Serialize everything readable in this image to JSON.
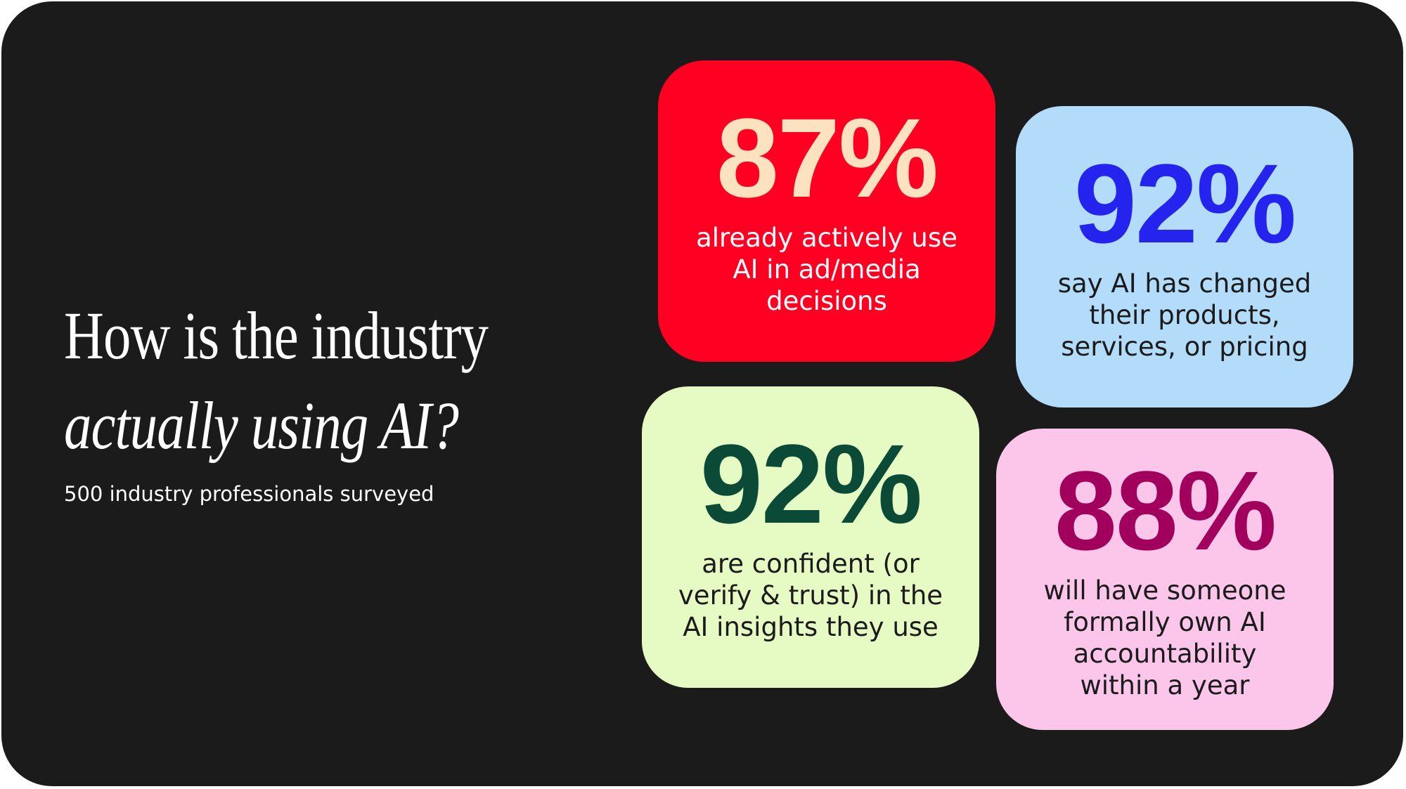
{
  "title": {
    "line1": "How is the industry",
    "line2": "actually using AI?"
  },
  "subtitle": "500 industry professionals surveyed",
  "cards": [
    {
      "stat": "87%",
      "lines": [
        "already actively use",
        "AI in ad/media",
        "decisions"
      ]
    },
    {
      "stat": "92%",
      "lines": [
        "say AI has changed",
        "their products,",
        "services, or pricing"
      ]
    },
    {
      "stat": "92%",
      "lines": [
        "are confident (or",
        "verify & trust) in the",
        "AI insights they use"
      ]
    },
    {
      "stat": "88%",
      "lines": [
        "will have someone",
        "formally own AI",
        "accountability",
        "within a year"
      ]
    }
  ]
}
